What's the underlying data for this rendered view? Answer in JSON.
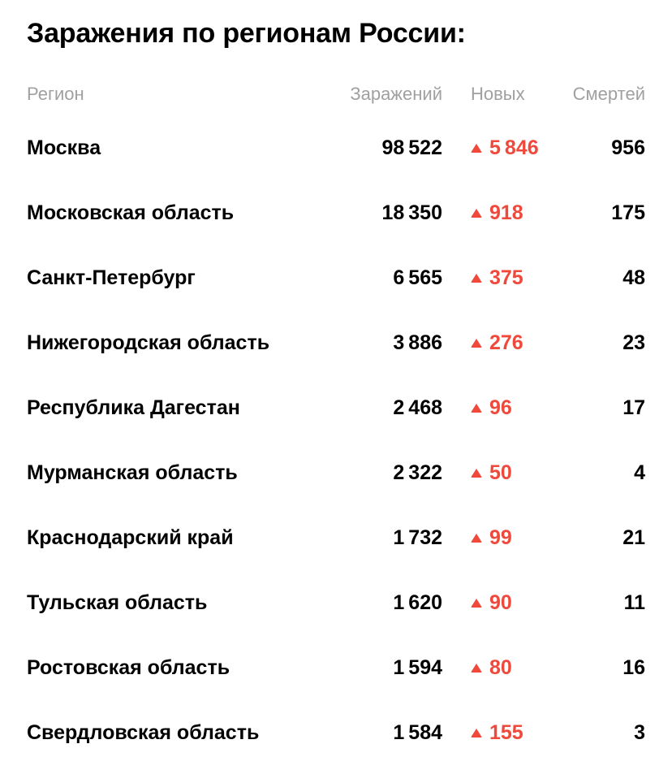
{
  "colors": {
    "accent_red": "#ef493c",
    "header_gray": "#a0a0a0",
    "text_black": "#000000",
    "background": "#ffffff"
  },
  "icons": {
    "new_cases_trend": "up-triangle"
  },
  "chart_data": {
    "type": "table",
    "title": "Заражения по регионам России:",
    "header": {
      "region": "Регион",
      "infections": "Заражений",
      "new_cases": "Новых",
      "deaths": "Смертей"
    },
    "rows": [
      {
        "region": "Москва",
        "infections": 98522,
        "new_cases": 5846,
        "deaths": 956
      },
      {
        "region": "Московская область",
        "infections": 18350,
        "new_cases": 918,
        "deaths": 175
      },
      {
        "region": "Санкт-Петербург",
        "infections": 6565,
        "new_cases": 375,
        "deaths": 48
      },
      {
        "region": "Нижегородская область",
        "infections": 3886,
        "new_cases": 276,
        "deaths": 23
      },
      {
        "region": "Республика Дагестан",
        "infections": 2468,
        "new_cases": 96,
        "deaths": 17
      },
      {
        "region": "Мурманская область",
        "infections": 2322,
        "new_cases": 50,
        "deaths": 4
      },
      {
        "region": "Краснодарский край",
        "infections": 1732,
        "new_cases": 99,
        "deaths": 21
      },
      {
        "region": "Тульская область",
        "infections": 1620,
        "new_cases": 90,
        "deaths": 11
      },
      {
        "region": "Ростовская область",
        "infections": 1594,
        "new_cases": 80,
        "deaths": 16
      },
      {
        "region": "Свердловская область",
        "infections": 1584,
        "new_cases": 155,
        "deaths": 3
      }
    ]
  }
}
